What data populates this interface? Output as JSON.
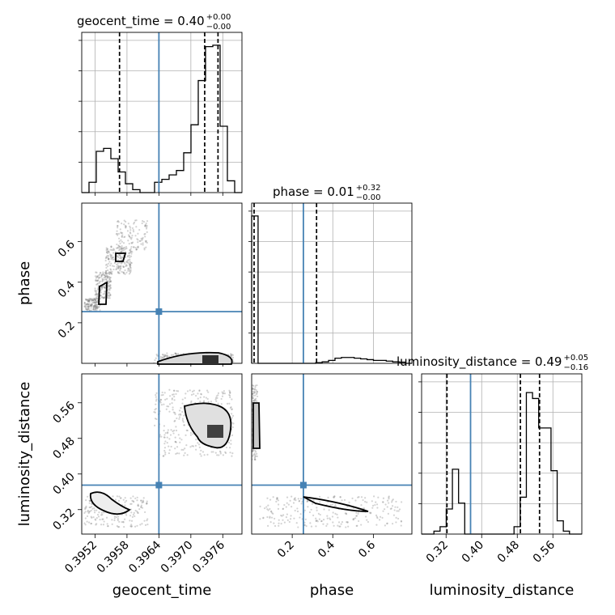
{
  "chart_data": {
    "type": "corner",
    "parameters": [
      "geocent_time",
      "phase",
      "luminosity_distance"
    ],
    "truths": {
      "geocent_time": 0.3964,
      "phase": 0.255,
      "luminosity_distance": 0.375
    },
    "colors": {
      "truth": "#4682b4",
      "hist": "#000000",
      "grid": "#b0b0b0",
      "points": "#808080"
    },
    "panel_titles": [
      {
        "param": "geocent_time",
        "main": "geocent_time = 0.40",
        "plus": "+0.00",
        "minus": "−0.00"
      },
      {
        "param": "phase",
        "main": "phase = 0.01",
        "plus": "+0.32",
        "minus": "−0.00"
      },
      {
        "param": "luminosity_distance",
        "main": "luminosity_distance = 0.49",
        "plus": "+0.05",
        "minus": "−0.16"
      }
    ],
    "axes": {
      "geocent_time": {
        "lim": [
          0.39495,
          0.39796
        ],
        "ticks": [
          0.3952,
          0.3958,
          0.3964,
          0.397,
          0.3976
        ],
        "tick_labels": [
          "0.3952",
          "0.3958",
          "0.3964",
          "0.3970",
          "0.3976"
        ],
        "label": "geocent_time"
      },
      "phase": {
        "lim": [
          0.0,
          0.79
        ],
        "ticks": [
          0.2,
          0.4,
          0.6
        ],
        "tick_labels": [
          "0.2",
          "0.4",
          "0.6"
        ],
        "label": "phase"
      },
      "luminosity_distance": {
        "lim": [
          0.265,
          0.625
        ],
        "ticks": [
          0.32,
          0.4,
          0.48,
          0.56
        ],
        "tick_labels": [
          "0.32",
          "0.40",
          "0.48",
          "0.56"
        ],
        "label": "luminosity_distance"
      }
    },
    "marginals": {
      "geocent_time": {
        "quantiles": [
          0.39566,
          0.39726,
          0.39751
        ],
        "counts": [
          0.0,
          0.07,
          0.28,
          0.3,
          0.23,
          0.14,
          0.06,
          0.02,
          0.0,
          0.0,
          0.07,
          0.09,
          0.12,
          0.15,
          0.27,
          0.46,
          0.76,
          0.99,
          1.0,
          0.45,
          0.08,
          0.0
        ]
      },
      "phase": {
        "quantiles": [
          0.012,
          0.32
        ],
        "counts": [
          1.0,
          0.0,
          0.0,
          0.0,
          0.0,
          0.0,
          0.0,
          0.0,
          0.0,
          0.0,
          0.005,
          0.01,
          0.02,
          0.035,
          0.04,
          0.04,
          0.035,
          0.03,
          0.025,
          0.02,
          0.02,
          0.015,
          0.01,
          0.008,
          0.0
        ]
      },
      "luminosity_distance": {
        "quantiles": [
          0.322,
          0.487,
          0.53
        ],
        "counts": [
          0.0,
          0.0,
          0.02,
          0.05,
          0.17,
          0.44,
          0.21,
          0.0,
          0.0,
          0.0,
          0.0,
          0.0,
          0.0,
          0.0,
          0.0,
          0.05,
          0.25,
          0.96,
          0.92,
          0.72,
          0.72,
          0.43,
          0.09,
          0.02,
          0.0,
          0.0
        ]
      }
    },
    "scatter_clusters": {
      "phase_vs_geocent_time": [
        {
          "x": [
            0.395,
            0.3953
          ],
          "y": [
            0.26,
            0.32
          ],
          "n": 140
        },
        {
          "x": [
            0.3952,
            0.3955
          ],
          "y": [
            0.32,
            0.45
          ],
          "n": 180
        },
        {
          "x": [
            0.3954,
            0.3959
          ],
          "y": [
            0.44,
            0.58
          ],
          "n": 200
        },
        {
          "x": [
            0.3956,
            0.3962
          ],
          "y": [
            0.56,
            0.71
          ],
          "n": 120
        },
        {
          "x": [
            0.3963,
            0.3978
          ],
          "y": [
            0.0,
            0.05
          ],
          "n": 220
        }
      ],
      "luminosity_distance_vs_geocent_time": [
        {
          "x": [
            0.395,
            0.3962
          ],
          "y": [
            0.28,
            0.35
          ],
          "n": 200
        },
        {
          "x": [
            0.3964,
            0.3978
          ],
          "y": [
            0.44,
            0.5
          ],
          "n": 140
        },
        {
          "x": [
            0.3963,
            0.3978
          ],
          "y": [
            0.5,
            0.59
          ],
          "n": 240
        }
      ],
      "luminosity_distance_vs_phase": [
        {
          "x": [
            0.0,
            0.03
          ],
          "y": [
            0.43,
            0.6
          ],
          "n": 140
        },
        {
          "x": [
            0.04,
            0.74
          ],
          "y": [
            0.28,
            0.35
          ],
          "n": 260
        }
      ]
    }
  }
}
